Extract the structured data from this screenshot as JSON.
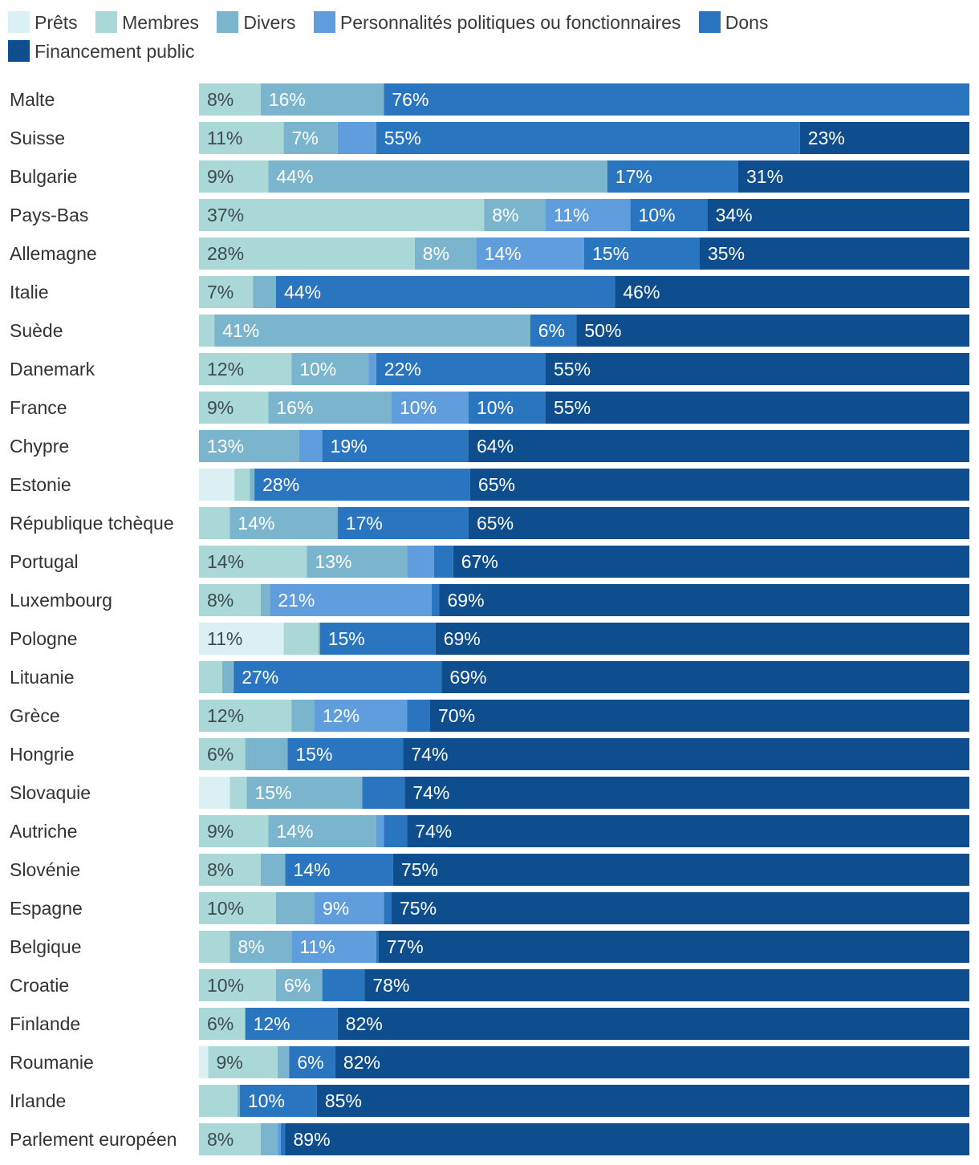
{
  "chart_data": {
    "type": "stacked-bar-horizontal",
    "title": "",
    "xlabel": "",
    "ylabel": "",
    "xlim": [
      0,
      100
    ],
    "legend_position": "top",
    "categories": [
      "Malte",
      "Suisse",
      "Bulgarie",
      "Pays-Bas",
      "Allemagne",
      "Italie",
      "Suède",
      "Danemark",
      "France",
      "Chypre",
      "Estonie",
      "République tchèque",
      "Portugal",
      "Luxembourg",
      "Pologne",
      "Lituanie",
      "Grèce",
      "Hongrie",
      "Slovaquie",
      "Autriche",
      "Slovénie",
      "Espagne",
      "Belgique",
      "Croatie",
      "Finlande",
      "Roumanie",
      "Irlande",
      "Parlement européen"
    ],
    "series": [
      {
        "name": "Prêts",
        "color": "#daf0f2",
        "values": [
          0,
          0,
          0,
          0,
          0,
          0,
          0,
          0,
          0,
          0,
          4.6,
          0,
          0,
          0,
          11,
          0,
          0,
          0,
          4,
          0,
          0,
          0,
          0,
          0,
          0,
          1.2,
          0,
          0
        ],
        "labels": [
          "",
          "",
          "",
          "",
          "",
          "",
          "",
          "",
          "",
          "",
          "",
          "",
          "",
          "",
          "11%",
          "",
          "",
          "",
          "",
          "",
          "",
          "",
          "",
          "",
          "",
          "",
          "",
          ""
        ]
      },
      {
        "name": "Membres",
        "color": "#a9d8d7",
        "values": [
          8,
          11,
          9,
          37,
          28,
          7,
          2,
          12,
          9,
          0,
          2,
          4,
          14,
          8,
          4.5,
          3,
          12,
          6,
          2.2,
          9,
          8,
          10,
          4,
          10,
          6,
          9,
          5,
          8
        ],
        "labels": [
          "8%",
          "11%",
          "9%",
          "37%",
          "28%",
          "7%",
          "",
          "12%",
          "9%",
          "",
          "",
          "",
          "14%",
          "8%",
          "",
          "",
          "12%",
          "6%",
          "",
          "9%",
          "8%",
          "10%",
          "",
          "10%",
          "6%",
          "9%",
          "",
          "8%"
        ]
      },
      {
        "name": "Divers",
        "color": "#7ab4cd",
        "values": [
          16,
          7,
          44,
          8,
          8,
          3,
          41,
          10,
          16,
          13,
          0.6,
          14,
          13,
          1.2,
          0.2,
          1.5,
          3,
          5.5,
          15,
          14,
          3.2,
          5,
          8,
          6,
          0,
          1.5,
          0.3,
          2.2
        ],
        "labels": [
          "16%",
          "7%",
          "44%",
          "8%",
          "8%",
          "",
          "41%",
          "10%",
          "16%",
          "13%",
          "",
          "14%",
          "13%",
          "",
          "",
          "",
          "",
          "",
          "15%",
          "14%",
          "",
          "",
          "8%",
          "6%",
          "",
          "",
          "",
          ""
        ]
      },
      {
        "name": "Personnalités politiques ou fonctionnaires",
        "color": "#5f9ddc",
        "values": [
          0,
          5,
          0,
          11,
          14,
          0,
          0,
          1,
          10,
          3,
          0,
          0,
          3.5,
          21,
          0,
          0,
          12,
          0,
          0,
          1,
          0,
          9,
          11,
          0,
          0,
          0,
          0,
          0.4
        ]
      },
      {
        "name": "Dons",
        "color": "#2a75c0",
        "values": [
          76,
          55,
          17,
          10,
          15,
          44,
          6,
          22,
          10,
          19,
          28,
          17,
          2.5,
          1,
          15,
          27,
          3,
          15,
          5.5,
          3,
          14,
          1,
          0.3,
          5.5,
          12,
          6,
          10,
          0.6
        ]
      },
      {
        "name": "Financement public",
        "color": "#0e4d8e",
        "values": [
          0,
          23,
          31,
          34,
          35,
          46,
          50,
          55,
          55,
          64,
          65,
          65,
          67,
          69,
          69,
          69,
          70,
          74,
          74,
          74,
          75,
          75,
          77,
          78,
          82,
          82,
          85,
          89
        ]
      }
    ],
    "segment_labels": [
      [
        "",
        "8%",
        "16%",
        "",
        "76%",
        ""
      ],
      [
        "",
        "11%",
        "7%",
        "",
        "55%",
        "23%"
      ],
      [
        "",
        "9%",
        "44%",
        "",
        "17%",
        "31%"
      ],
      [
        "",
        "37%",
        "8%",
        "11%",
        "10%",
        "34%"
      ],
      [
        "",
        "28%",
        "8%",
        "14%",
        "15%",
        "35%"
      ],
      [
        "",
        "7%",
        "",
        "",
        "44%",
        "46%"
      ],
      [
        "",
        "",
        "41%",
        "",
        "6%",
        "50%"
      ],
      [
        "",
        "12%",
        "10%",
        "",
        "22%",
        "55%"
      ],
      [
        "",
        "9%",
        "16%",
        "10%",
        "10%",
        "55%"
      ],
      [
        "",
        "",
        "13%",
        "",
        "19%",
        "64%"
      ],
      [
        "",
        "",
        "",
        "",
        "28%",
        "65%"
      ],
      [
        "",
        "",
        "14%",
        "",
        "17%",
        "65%"
      ],
      [
        "",
        "14%",
        "13%",
        "",
        "",
        "67%"
      ],
      [
        "",
        "8%",
        "",
        "21%",
        "",
        "69%"
      ],
      [
        "11%",
        "",
        "",
        "",
        "15%",
        "69%"
      ],
      [
        "",
        "",
        "",
        "",
        "27%",
        "69%"
      ],
      [
        "",
        "12%",
        "",
        "12%",
        "",
        "70%"
      ],
      [
        "",
        "6%",
        "",
        "",
        "15%",
        "74%"
      ],
      [
        "",
        "",
        "15%",
        "",
        "",
        "74%"
      ],
      [
        "",
        "9%",
        "14%",
        "",
        "",
        "74%"
      ],
      [
        "",
        "8%",
        "",
        "",
        "14%",
        "75%"
      ],
      [
        "",
        "10%",
        "",
        "9%",
        "",
        "75%"
      ],
      [
        "",
        "",
        "8%",
        "11%",
        "",
        "77%"
      ],
      [
        "",
        "10%",
        "6%",
        "",
        "",
        "78%"
      ],
      [
        "",
        "6%",
        "",
        "",
        "12%",
        "82%"
      ],
      [
        "",
        "9%",
        "",
        "",
        "6%",
        "82%"
      ],
      [
        "",
        "",
        "",
        "",
        "10%",
        "85%"
      ],
      [
        "",
        "8%",
        "",
        "",
        "",
        "89%"
      ]
    ]
  }
}
